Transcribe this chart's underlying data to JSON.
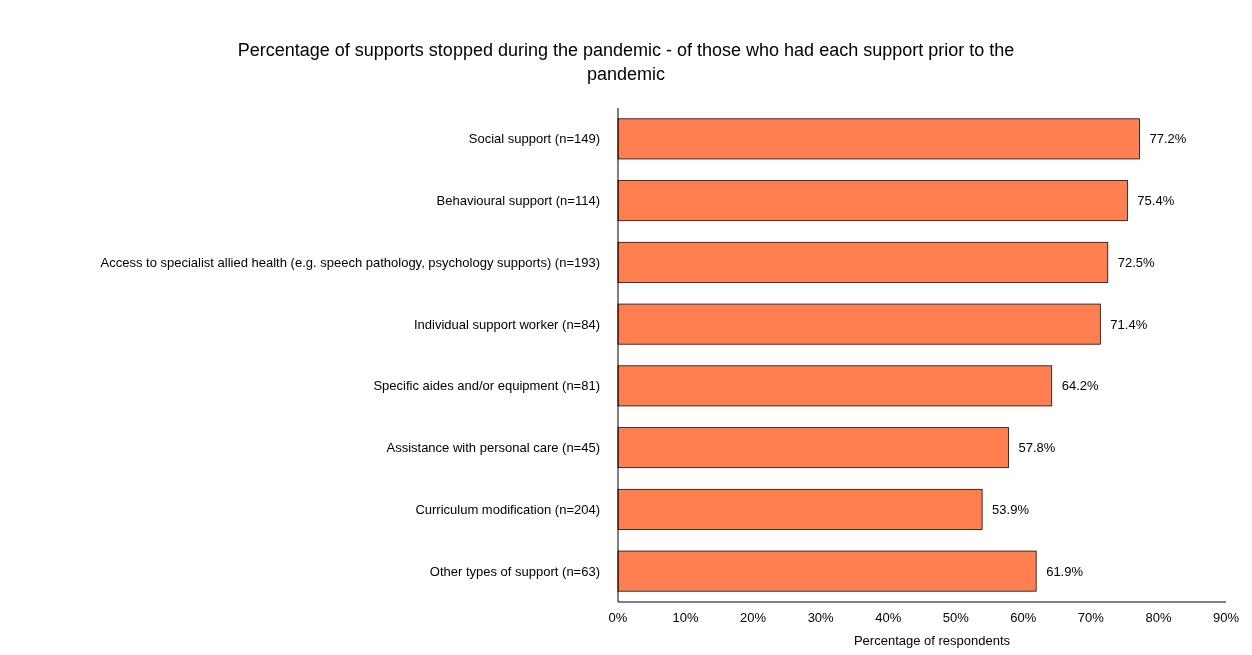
{
  "chart_data": {
    "type": "bar",
    "orientation": "horizontal",
    "title": "Percentage of supports stopped during the pandemic - of those who had each support prior to the pandemic",
    "xlabel": "Percentage of respondents",
    "categories": [
      "Social support (n=149)",
      "Behavioural support (n=114)",
      "Access to specialist allied health (e.g. speech pathology, psychology supports) (n=193)",
      "Individual support worker (n=84)",
      "Specific aides and/or equipment (n=81)",
      "Assistance with personal care (n=45)",
      "Curriculum modification (n=204)",
      "Other types of support (n=63)"
    ],
    "values": [
      77.2,
      75.4,
      72.5,
      71.4,
      64.2,
      57.8,
      53.9,
      61.9
    ],
    "value_labels": [
      "77.2%",
      "75.4%",
      "72.5%",
      "71.4%",
      "64.2%",
      "57.8%",
      "53.9%",
      "61.9%"
    ],
    "color": "#ff7f50",
    "xlim": [
      0,
      90
    ],
    "xticks": [
      {
        "value": 0,
        "label": "0%"
      },
      {
        "value": 10,
        "label": "10%"
      },
      {
        "value": 20,
        "label": "20%"
      },
      {
        "value": 30,
        "label": "30%"
      },
      {
        "value": 40,
        "label": "40%"
      },
      {
        "value": 50,
        "label": "50%"
      },
      {
        "value": 60,
        "label": "60%"
      },
      {
        "value": 70,
        "label": "70%"
      },
      {
        "value": 80,
        "label": "80%"
      },
      {
        "value": 90,
        "label": "90%"
      }
    ],
    "grid": false
  }
}
